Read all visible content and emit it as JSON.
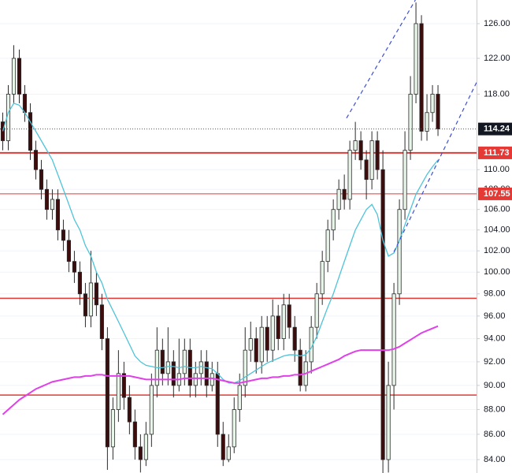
{
  "chart_data": {
    "type": "candlestick",
    "log": true,
    "grid": true,
    "xlim": [
      -0.5,
      86
    ],
    "ylim": [
      82.96,
      128.8
    ],
    "yticks": [
      {
        "value": 84,
        "label": "84.00"
      },
      {
        "value": 86,
        "label": "86.00"
      },
      {
        "value": 88,
        "label": "88.00"
      },
      {
        "value": 90,
        "label": "90.00"
      },
      {
        "value": 92,
        "label": "92.00"
      },
      {
        "value": 94,
        "label": "94.00"
      },
      {
        "value": 96,
        "label": "96.00"
      },
      {
        "value": 98,
        "label": "98.00"
      },
      {
        "value": 100,
        "label": "100.00"
      },
      {
        "value": 102,
        "label": "102.00"
      },
      {
        "value": 104,
        "label": "104.00"
      },
      {
        "value": 106,
        "label": "106.00"
      },
      {
        "value": 108,
        "label": "108.00"
      },
      {
        "value": 110,
        "label": "110.00"
      },
      {
        "value": 118,
        "label": "118.00"
      },
      {
        "value": 122,
        "label": "122.00"
      },
      {
        "value": 126,
        "label": "126.00"
      }
    ],
    "up_color": "#e8f5e9",
    "down_color": "#3d0c0c",
    "outline_color": "#2b2b2b",
    "candles": {
      "open": [
        115,
        113,
        118,
        122,
        118,
        116,
        112,
        110,
        108,
        106,
        107,
        104,
        103,
        101,
        100,
        98,
        96,
        99,
        97,
        94,
        85,
        88,
        91,
        89,
        87,
        85,
        84,
        86,
        90,
        93,
        91,
        92,
        90,
        91,
        93,
        90,
        91,
        92,
        90,
        91,
        86,
        84,
        85,
        88,
        90,
        93,
        94,
        92,
        95,
        93,
        96,
        94,
        97,
        95,
        93,
        90,
        92,
        95,
        98,
        101,
        104,
        106,
        108,
        107,
        112,
        113,
        111,
        109,
        113,
        110,
        84,
        90,
        98,
        106,
        112,
        118,
        126,
        114,
        116,
        118
      ],
      "high": [
        116,
        119,
        123.5,
        123,
        119,
        117,
        113,
        111,
        109,
        108,
        108,
        105,
        104,
        102,
        101,
        99,
        102,
        100,
        98,
        95,
        89,
        93,
        92,
        90,
        88,
        86,
        87,
        91,
        95,
        94,
        95,
        93,
        94,
        94,
        94,
        92,
        93,
        93,
        92,
        92,
        87,
        86,
        89,
        91,
        95,
        95.5,
        95,
        96,
        96,
        97.5,
        97,
        98,
        98,
        96,
        94,
        93,
        96,
        99,
        102,
        105,
        107,
        109,
        109.5,
        113,
        115,
        114,
        112,
        114,
        114,
        112,
        92,
        99,
        107,
        114,
        120,
        128.5,
        127,
        118,
        119,
        119
      ],
      "low": [
        112,
        112,
        117,
        117,
        115,
        111,
        109,
        107,
        105,
        105,
        103,
        102,
        100,
        99,
        97,
        95,
        95,
        96,
        93,
        83.2,
        84,
        87,
        88,
        86,
        84,
        83,
        83.5,
        85,
        89,
        90,
        90,
        89,
        89.5,
        90,
        89,
        89,
        90,
        89,
        89.5,
        85,
        83.5,
        83.8,
        84.5,
        87,
        89,
        92,
        91,
        91,
        92,
        92,
        93,
        93,
        94,
        92,
        89.5,
        89.5,
        91,
        94,
        97,
        100,
        103,
        105,
        106,
        106,
        111,
        110,
        107,
        108,
        109,
        82.9,
        83,
        88,
        97,
        105,
        111,
        117,
        113,
        113,
        115,
        113.5
      ],
      "close": [
        113,
        118,
        122,
        118,
        116,
        112,
        110,
        108,
        106,
        107,
        104,
        103,
        101,
        100,
        98,
        96,
        99,
        97,
        94,
        85,
        88,
        91,
        89,
        87,
        85,
        84,
        86,
        90,
        93,
        91,
        92,
        90,
        91,
        93,
        90,
        91,
        92,
        90,
        91,
        86,
        84,
        85,
        88,
        90,
        93,
        94,
        92,
        95,
        93,
        96,
        94,
        97,
        95,
        93,
        90,
        92,
        95,
        98,
        101,
        104,
        106,
        108,
        107,
        112,
        113,
        111,
        109,
        113,
        110,
        84,
        90,
        98,
        106,
        112,
        118,
        126,
        114,
        116,
        118,
        114.24
      ]
    },
    "series": [
      {
        "color": "#4dc3d8",
        "values": [
          114,
          116,
          117,
          116.8,
          116,
          115,
          114,
          113,
          112,
          111,
          109.5,
          108,
          106.5,
          105,
          104,
          102.5,
          101.5,
          100,
          99,
          97.5,
          96.5,
          95.5,
          94.5,
          93.5,
          92.5,
          92,
          91.7,
          91.6,
          91.5,
          91.5,
          91.6,
          91.6,
          91.5,
          91.6,
          91.5,
          91.5,
          91.6,
          91.5,
          91.4,
          91,
          90.5,
          90.2,
          90.2,
          90.4,
          90.7,
          91,
          91.3,
          91.6,
          91.9,
          92.1,
          92.3,
          92.5,
          92.6,
          92.6,
          92.5,
          92.6,
          93.2,
          94.2,
          95.5,
          96.8,
          98,
          99.5,
          101,
          102.5,
          104,
          105,
          106,
          106.5,
          105.5,
          103,
          101.5,
          101.8,
          103,
          104.5,
          106,
          107.5,
          108.5,
          109.5,
          110.3,
          111
        ]
      },
      {
        "color": "#e040e8",
        "values": [
          87.6,
          88,
          88.4,
          88.8,
          89.1,
          89.4,
          89.7,
          89.9,
          90.1,
          90.3,
          90.4,
          90.5,
          90.6,
          90.7,
          90.7,
          90.8,
          90.8,
          90.9,
          90.9,
          90.8,
          90.8,
          90.8,
          90.8,
          90.8,
          90.7,
          90.6,
          90.5,
          90.5,
          90.5,
          90.5,
          90.5,
          90.5,
          90.5,
          90.6,
          90.6,
          90.6,
          90.6,
          90.6,
          90.6,
          90.5,
          90.4,
          90.3,
          90.2,
          90.2,
          90.3,
          90.4,
          90.5,
          90.6,
          90.6,
          90.7,
          90.7,
          90.8,
          90.8,
          90.9,
          90.9,
          91,
          91.2,
          91.4,
          91.6,
          91.8,
          92,
          92.2,
          92.5,
          92.7,
          92.9,
          93,
          93,
          93,
          93,
          93,
          93,
          93.1,
          93.3,
          93.6,
          93.9,
          94.2,
          94.5,
          94.7,
          94.9,
          95.1
        ]
      }
    ],
    "trendlines": [
      {
        "color": "#3b4fd6",
        "x": [
          62.4,
          74.9
        ],
        "y": [
          115.4,
          128.8
        ]
      },
      {
        "color": "#3b4fd6",
        "x": [
          71,
          86
        ],
        "y": [
          101.9,
          119.3
        ]
      }
    ],
    "levels": [
      {
        "value": 111.73,
        "width": 2,
        "tag": true
      },
      {
        "value": 107.55,
        "width": 1,
        "tag": true
      },
      {
        "value": 97.6,
        "width": 1.5,
        "tag": false
      },
      {
        "value": 89.2,
        "width": 1.5,
        "tag": false
      }
    ],
    "level_color": "#e53935",
    "last_price_color": "#131722"
  }
}
